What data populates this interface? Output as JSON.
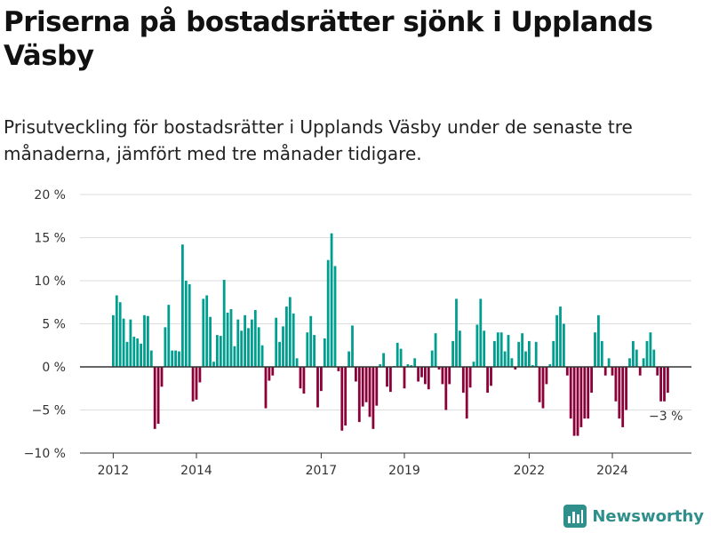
{
  "title": "Priserna på bostadsrätter sjönk i Upplands Väsby",
  "subtitle": "Prisutveckling för bostadsrätter i Upplands Väsby under de senaste tre månaderna, jämfört med tre månader tidigare.",
  "brand": {
    "name": "Newsworthy"
  },
  "colors": {
    "positive": "#009e8f",
    "negative": "#8c0039",
    "grid": "#dddddd",
    "zero_line": "#333333",
    "brand": "#2f8f8a"
  },
  "chart_data": {
    "type": "bar",
    "ylim": [
      -10,
      20
    ],
    "y_ticks": [
      {
        "value": 20,
        "label": "20 %"
      },
      {
        "value": 15,
        "label": "15 %"
      },
      {
        "value": 10,
        "label": "10 %"
      },
      {
        "value": 5,
        "label": "5 %"
      },
      {
        "value": 0,
        "label": "0 %"
      },
      {
        "value": -5,
        "label": "−5 %"
      },
      {
        "value": -10,
        "label": "−10 %"
      }
    ],
    "x_ticks": [
      {
        "year": 2012,
        "label": "2012"
      },
      {
        "year": 2014,
        "label": "2014"
      },
      {
        "year": 2017,
        "label": "2017"
      },
      {
        "year": 2019,
        "label": "2019"
      },
      {
        "year": 2022,
        "label": "2022"
      },
      {
        "year": 2024,
        "label": "2024"
      }
    ],
    "start": "2012-01",
    "end": "2025-01",
    "values": [
      6,
      8.3,
      7.5,
      5.6,
      2.9,
      5.5,
      3.5,
      3.3,
      2.7,
      6,
      5.9,
      1.9,
      -7.2,
      -6.6,
      -2.3,
      4.6,
      7.2,
      1.9,
      1.9,
      1.8,
      14.2,
      10,
      9.6,
      -4,
      -3.8,
      -1.8,
      7.9,
      8.3,
      5.8,
      0.6,
      3.7,
      3.6,
      10.1,
      6.3,
      6.7,
      2.4,
      5.5,
      4.2,
      6,
      4.5,
      5.5,
      6.6,
      4.6,
      2.5,
      -4.8,
      -1.6,
      -1,
      5.7,
      2.9,
      4.7,
      7,
      8.1,
      6.2,
      1,
      -2.5,
      -3.1,
      4,
      5.9,
      3.7,
      -4.7,
      -2.8,
      3.3,
      12.4,
      15.5,
      11.7,
      -0.5,
      -7.4,
      -6.8,
      1.8,
      4.8,
      -1.7,
      -6.4,
      -4.6,
      -4.1,
      -5.8,
      -7.2,
      -4.5,
      0.3,
      1.6,
      -2.3,
      -2.9,
      0.1,
      2.8,
      2.1,
      -2.5,
      0.3,
      0.2,
      1,
      -1.7,
      -1.2,
      -2,
      -2.6,
      1.9,
      3.9,
      -0.3,
      -2,
      -5,
      -2,
      3,
      7.9,
      4.2,
      -3,
      -6,
      -2.4,
      0.6,
      4.9,
      7.9,
      4.2,
      -3,
      -2.2,
      3,
      4,
      4,
      1.8,
      3.7,
      1,
      -0.3,
      2.9,
      3.9,
      1.8,
      3,
      0.2,
      2.9,
      -4.1,
      -4.8,
      -2,
      0.3,
      3,
      6,
      7,
      5,
      -1,
      -6,
      -8,
      -8,
      -7,
      -6,
      -6,
      -3,
      4,
      6,
      3,
      -1,
      1,
      -1,
      -4,
      -6,
      -7,
      -5,
      1,
      3,
      2,
      -1,
      1,
      3,
      4,
      2,
      -1,
      -4,
      -4,
      -3
    ],
    "annotation": "−3 %"
  }
}
